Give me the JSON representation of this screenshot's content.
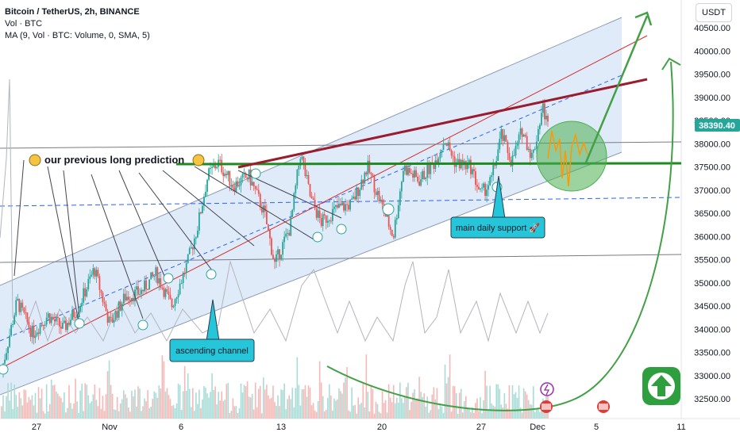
{
  "header": {
    "title": "Bitcoin / TetherUS, 2h, BINANCE",
    "vol_label": "Vol · BTC",
    "ma_label": "MA (9, Vol · BTC: Volume, 0, SMA, 5)",
    "currency": "USDT"
  },
  "colors": {
    "channel_fill": "#dbe8f8",
    "candle_up": "#26a69a",
    "candle_down": "#ef5350",
    "support_green": "#1f8a1f",
    "resistance_red": "#9b1c2e",
    "projection_green": "#4caf50",
    "price_tag": "#26a69a",
    "label_bg": "#26c6da"
  },
  "annotations": {
    "prediction_text": "our previous long prediction",
    "support_text": "main daily support 🚀",
    "channel_text": "ascending channel"
  },
  "chart_data": {
    "type": "candlestick",
    "symbol": "BTC/USDT",
    "interval": "2h",
    "exchange": "BINANCE",
    "last_price": "38390.40",
    "y_ticks": [
      "40500.00",
      "40000.00",
      "39500.00",
      "39000.00",
      "38500.00",
      "38000.00",
      "37500.00",
      "37000.00",
      "36500.00",
      "36000.00",
      "35500.00",
      "35000.00",
      "34500.00",
      "34000.00",
      "33500.00",
      "33000.00",
      "32500.00"
    ],
    "x_ticks": [
      "27",
      "Nov",
      "6",
      "13",
      "20",
      "27",
      "Dec",
      "5",
      "11"
    ],
    "ylim": [
      32200,
      40800
    ],
    "support_level": 37550,
    "price_path": [
      [
        0,
        33100
      ],
      [
        3,
        34600
      ],
      [
        6,
        33900
      ],
      [
        9,
        34300
      ],
      [
        12,
        34000
      ],
      [
        15,
        34500
      ],
      [
        18,
        35300
      ],
      [
        21,
        34100
      ],
      [
        24,
        34700
      ],
      [
        27,
        34800
      ],
      [
        30,
        35200
      ],
      [
        33,
        34500
      ],
      [
        36,
        35400
      ],
      [
        38,
        36200
      ],
      [
        40,
        37300
      ],
      [
        42,
        37600
      ],
      [
        45,
        37100
      ],
      [
        48,
        37300
      ],
      [
        51,
        36500
      ],
      [
        53,
        35400
      ],
      [
        56,
        36200
      ],
      [
        58,
        37800
      ],
      [
        60,
        36800
      ],
      [
        62,
        36300
      ],
      [
        65,
        36600
      ],
      [
        68,
        36700
      ],
      [
        71,
        37500
      ],
      [
        74,
        36600
      ],
      [
        76,
        36000
      ],
      [
        78,
        37500
      ],
      [
        81,
        37200
      ],
      [
        84,
        37600
      ],
      [
        86,
        38100
      ],
      [
        88,
        37600
      ],
      [
        91,
        37500
      ],
      [
        93,
        36900
      ],
      [
        95,
        37200
      ],
      [
        97,
        38200
      ],
      [
        99,
        37600
      ],
      [
        101,
        38300
      ],
      [
        103,
        37700
      ],
      [
        105,
        38800
      ],
      [
        106,
        38390
      ]
    ]
  }
}
